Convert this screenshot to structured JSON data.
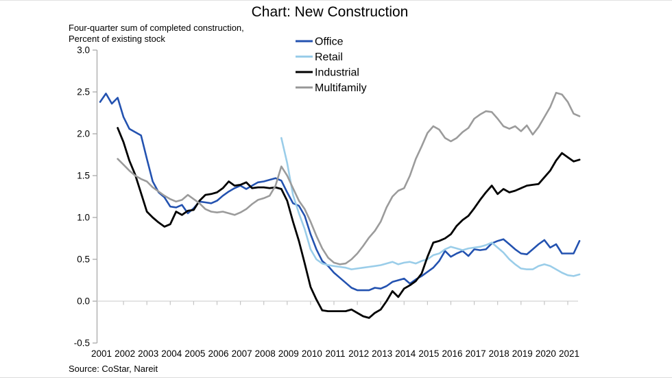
{
  "chart_data": {
    "type": "line",
    "title": "Chart: New Construction",
    "subtitle": [
      "Four-quarter sum of completed construction,",
      "Percent of existing stock"
    ],
    "source": "Source: CoStar, Nareit",
    "x_start": 2001.0,
    "x_step_years": 0.25,
    "x_tick_labels": [
      "2001",
      "2002",
      "2003",
      "2004",
      "2005",
      "2006",
      "2007",
      "2008",
      "2009",
      "2010",
      "2011",
      "2012",
      "2013",
      "2014",
      "2015",
      "2016",
      "2017",
      "2018",
      "2019",
      "2020",
      "2021"
    ],
    "y_ticks": [
      3.0,
      2.5,
      2.0,
      1.5,
      1.0,
      0.5,
      0.0,
      -0.5
    ],
    "ylim": [
      -0.5,
      3.0
    ],
    "grid": "zero-line-only",
    "legend_position": "top-center",
    "axis_colors": {
      "y_axis": "#a9a9a9",
      "zero_line": "#d4d4d4",
      "x_ticks": "#c4c4c4"
    },
    "series": [
      {
        "name": "Office",
        "color": "#2352b0",
        "values": [
          2.38,
          2.48,
          2.36,
          2.43,
          2.2,
          2.06,
          2.02,
          1.98,
          1.7,
          1.43,
          1.3,
          1.24,
          1.13,
          1.12,
          1.15,
          1.05,
          1.11,
          1.19,
          1.18,
          1.17,
          1.2,
          1.26,
          1.31,
          1.35,
          1.38,
          1.34,
          1.38,
          1.42,
          1.43,
          1.45,
          1.47,
          1.44,
          1.3,
          1.17,
          1.14,
          1.02,
          0.8,
          0.62,
          0.48,
          0.42,
          0.34,
          0.28,
          0.22,
          0.16,
          0.13,
          0.13,
          0.13,
          0.16,
          0.15,
          0.18,
          0.23,
          0.25,
          0.27,
          0.21,
          0.26,
          0.3,
          0.35,
          0.4,
          0.48,
          0.6,
          0.53,
          0.57,
          0.6,
          0.54,
          0.62,
          0.61,
          0.62,
          0.69,
          0.72,
          0.74,
          0.68,
          0.62,
          0.57,
          0.56,
          0.62,
          0.68,
          0.73,
          0.64,
          0.68,
          0.57,
          0.57,
          0.57,
          0.72
        ]
      },
      {
        "name": "Retail",
        "color": "#9acde9",
        "values": [
          null,
          null,
          null,
          null,
          null,
          null,
          null,
          null,
          null,
          null,
          null,
          null,
          null,
          null,
          null,
          null,
          null,
          null,
          null,
          null,
          null,
          null,
          null,
          null,
          null,
          null,
          null,
          null,
          null,
          null,
          null,
          1.95,
          1.65,
          1.27,
          1.05,
          0.86,
          0.62,
          0.5,
          0.45,
          0.43,
          0.42,
          0.41,
          0.4,
          0.38,
          0.39,
          0.4,
          0.41,
          0.42,
          0.43,
          0.45,
          0.47,
          0.44,
          0.46,
          0.47,
          0.45,
          0.48,
          0.5,
          0.55,
          0.57,
          0.62,
          0.65,
          0.63,
          0.61,
          0.63,
          0.64,
          0.65,
          0.67,
          0.7,
          0.64,
          0.58,
          0.5,
          0.44,
          0.39,
          0.38,
          0.38,
          0.42,
          0.44,
          0.42,
          0.38,
          0.34,
          0.31,
          0.3,
          0.32
        ]
      },
      {
        "name": "Industrial",
        "color": "#000000",
        "values": [
          null,
          null,
          null,
          2.07,
          1.9,
          1.68,
          1.51,
          1.29,
          1.07,
          1.0,
          0.94,
          0.89,
          0.92,
          1.07,
          1.03,
          1.08,
          1.09,
          1.2,
          1.27,
          1.28,
          1.3,
          1.35,
          1.43,
          1.38,
          1.39,
          1.42,
          1.35,
          1.36,
          1.36,
          1.35,
          1.36,
          1.34,
          1.2,
          0.95,
          0.72,
          0.45,
          0.17,
          0.02,
          -0.11,
          -0.12,
          -0.12,
          -0.12,
          -0.12,
          -0.1,
          -0.14,
          -0.18,
          -0.2,
          -0.14,
          -0.1,
          0.0,
          0.12,
          0.05,
          0.15,
          0.19,
          0.24,
          0.33,
          0.53,
          0.7,
          0.72,
          0.75,
          0.8,
          0.9,
          0.97,
          1.02,
          1.11,
          1.21,
          1.3,
          1.38,
          1.28,
          1.34,
          1.3,
          1.32,
          1.35,
          1.38,
          1.39,
          1.4,
          1.48,
          1.56,
          1.68,
          1.77,
          1.72,
          1.67,
          1.69
        ]
      },
      {
        "name": "Multifamily",
        "color": "#9b9b9b",
        "values": [
          null,
          null,
          null,
          1.7,
          1.63,
          1.56,
          1.5,
          1.46,
          1.43,
          1.36,
          1.31,
          1.26,
          1.22,
          1.19,
          1.21,
          1.27,
          1.22,
          1.17,
          1.1,
          1.07,
          1.06,
          1.07,
          1.05,
          1.03,
          1.06,
          1.1,
          1.16,
          1.21,
          1.23,
          1.26,
          1.38,
          1.61,
          1.5,
          1.35,
          1.2,
          1.1,
          0.95,
          0.78,
          0.63,
          0.52,
          0.46,
          0.44,
          0.45,
          0.5,
          0.57,
          0.66,
          0.76,
          0.84,
          0.95,
          1.12,
          1.25,
          1.32,
          1.35,
          1.5,
          1.7,
          1.85,
          2.01,
          2.09,
          2.05,
          1.95,
          1.91,
          1.95,
          2.02,
          2.07,
          2.18,
          2.23,
          2.27,
          2.26,
          2.18,
          2.09,
          2.06,
          2.09,
          2.03,
          2.1,
          1.99,
          2.08,
          2.2,
          2.32,
          2.49,
          2.47,
          2.38,
          2.24,
          2.21
        ]
      }
    ]
  }
}
